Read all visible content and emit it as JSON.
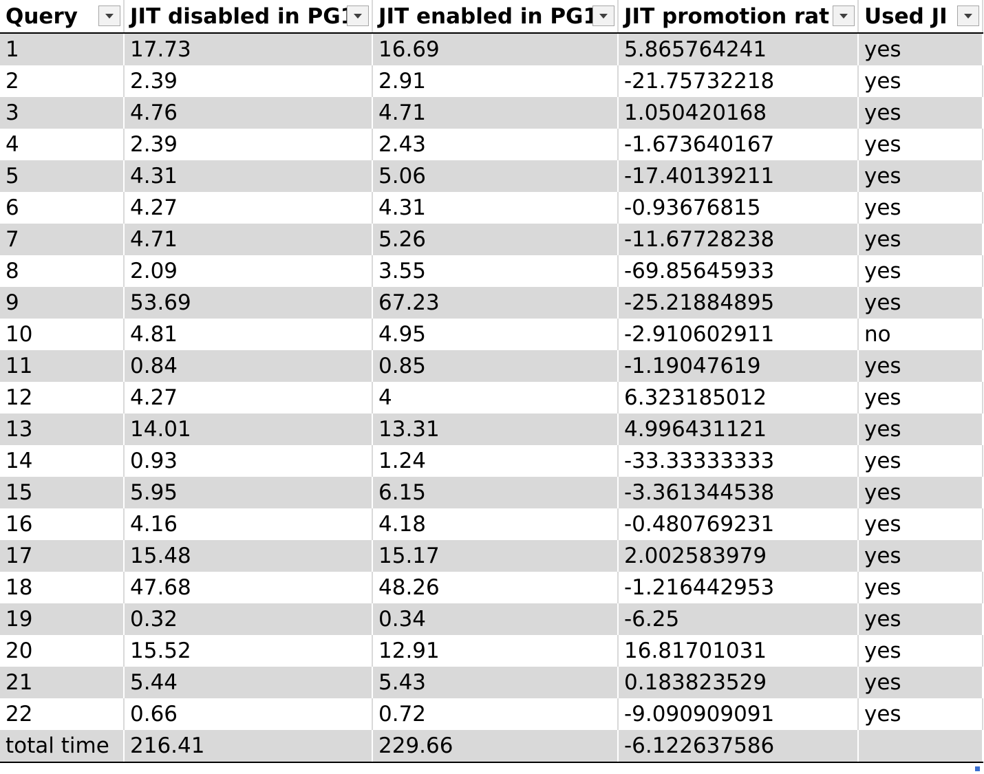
{
  "headers": [
    "Query",
    "JIT disabled in PG1",
    "JIT enabled in PG1",
    "JIT promotion rat",
    "Used JI"
  ],
  "rows": [
    [
      "1",
      "17.73",
      "16.69",
      "5.865764241",
      "yes"
    ],
    [
      "2",
      "2.39",
      "2.91",
      "-21.75732218",
      "yes"
    ],
    [
      "3",
      "4.76",
      "4.71",
      "1.050420168",
      "yes"
    ],
    [
      "4",
      "2.39",
      "2.43",
      "-1.673640167",
      "yes"
    ],
    [
      "5",
      "4.31",
      "5.06",
      "-17.40139211",
      "yes"
    ],
    [
      "6",
      "4.27",
      "4.31",
      "-0.93676815",
      "yes"
    ],
    [
      "7",
      "4.71",
      "5.26",
      "-11.67728238",
      "yes"
    ],
    [
      "8",
      "2.09",
      "3.55",
      "-69.85645933",
      "yes"
    ],
    [
      "9",
      "53.69",
      "67.23",
      "-25.21884895",
      "yes"
    ],
    [
      "10",
      "4.81",
      "4.95",
      "-2.910602911",
      "no"
    ],
    [
      "11",
      "0.84",
      "0.85",
      "-1.19047619",
      "yes"
    ],
    [
      "12",
      "4.27",
      "4",
      "6.323185012",
      "yes"
    ],
    [
      "13",
      "14.01",
      "13.31",
      "4.996431121",
      "yes"
    ],
    [
      "14",
      "0.93",
      "1.24",
      "-33.33333333",
      "yes"
    ],
    [
      "15",
      "5.95",
      "6.15",
      "-3.361344538",
      "yes"
    ],
    [
      "16",
      "4.16",
      "4.18",
      "-0.480769231",
      "yes"
    ],
    [
      "17",
      "15.48",
      "15.17",
      "2.002583979",
      "yes"
    ],
    [
      "18",
      "47.68",
      "48.26",
      "-1.216442953",
      "yes"
    ],
    [
      "19",
      "0.32",
      "0.34",
      "-6.25",
      "yes"
    ],
    [
      "20",
      "15.52",
      "12.91",
      "16.81701031",
      "yes"
    ],
    [
      "21",
      "5.44",
      "5.43",
      "0.183823529",
      "yes"
    ],
    [
      "22",
      "0.66",
      "0.72",
      "-9.090909091",
      "yes"
    ]
  ],
  "total": [
    "total time",
    "216.41",
    "229.66",
    "-6.122637586",
    ""
  ],
  "icons": {
    "filter": "filter-dropdown-icon",
    "resize": "table-resize-handle-icon"
  }
}
